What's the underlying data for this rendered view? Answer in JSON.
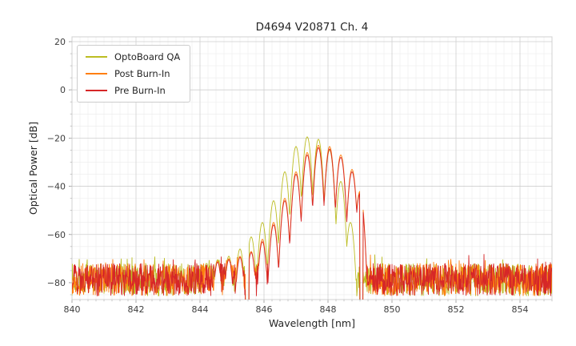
{
  "chart_data": {
    "type": "line",
    "title": "D4694 V20871 Ch. 4",
    "xlabel": "Wavelength [nm]",
    "ylabel": "Optical Power [dB]",
    "xlim": [
      840,
      855
    ],
    "ylim": [
      -87,
      22
    ],
    "xticks": [
      840,
      842,
      844,
      846,
      848,
      850,
      852,
      854
    ],
    "yticks": [
      20,
      0,
      -20,
      -40,
      -60,
      -80
    ],
    "x_minor_step": 0.25,
    "y_minor_step": 5,
    "grid": true,
    "legend_position": "upper left",
    "mode_spacing_nm": 0.35,
    "mode_notch_depth_db": 24,
    "noise_floor_db": {
      "min": -85.5,
      "max": -72
    },
    "dropouts": [
      [
        845.42,
        845.53
      ],
      [
        848.99,
        849.1
      ]
    ],
    "colors": {
      "grid_major": "#cfcfcf",
      "grid_minor": "#ebebeb",
      "axes_border": "#d0d0d0",
      "tick_text": "#3d3d3d",
      "title_text": "#262626"
    },
    "series": [
      {
        "name": "OptoBoard QA",
        "color": "#bcbd22",
        "seed": 7,
        "modes": [
          [
            844.2,
            -72
          ],
          [
            844.55,
            -70.5
          ],
          [
            844.9,
            -69
          ],
          [
            845.25,
            -66
          ],
          [
            845.6,
            -61
          ],
          [
            845.95,
            -55
          ],
          [
            846.3,
            -46
          ],
          [
            846.65,
            -34
          ],
          [
            847.0,
            -23.5
          ],
          [
            847.35,
            -19.5
          ],
          [
            847.7,
            -20.5
          ],
          [
            848.05,
            -25
          ],
          [
            848.4,
            -38
          ],
          [
            848.7,
            -55
          ]
        ]
      },
      {
        "name": "Post Burn-In",
        "color": "#ff7f0e",
        "seed": 13,
        "modes": [
          [
            844.55,
            -71
          ],
          [
            844.9,
            -70
          ],
          [
            845.25,
            -69
          ],
          [
            845.6,
            -67
          ],
          [
            845.95,
            -62
          ],
          [
            846.3,
            -55
          ],
          [
            846.65,
            -45
          ],
          [
            847.0,
            -34
          ],
          [
            847.35,
            -26
          ],
          [
            847.7,
            -23
          ],
          [
            848.05,
            -23.5
          ],
          [
            848.4,
            -27
          ],
          [
            848.75,
            -33
          ],
          [
            849.0,
            -42
          ]
        ]
      },
      {
        "name": "Pre Burn-In",
        "color": "#d62728",
        "seed": 29,
        "modes": [
          [
            844.55,
            -71.5
          ],
          [
            844.9,
            -70.5
          ],
          [
            845.25,
            -69.5
          ],
          [
            845.6,
            -67.5
          ],
          [
            845.95,
            -63
          ],
          [
            846.3,
            -56
          ],
          [
            846.65,
            -46
          ],
          [
            847.0,
            -35
          ],
          [
            847.35,
            -27
          ],
          [
            847.7,
            -24
          ],
          [
            848.05,
            -24.5
          ],
          [
            848.4,
            -28
          ],
          [
            848.75,
            -34
          ],
          [
            849.0,
            -43
          ]
        ]
      }
    ]
  }
}
